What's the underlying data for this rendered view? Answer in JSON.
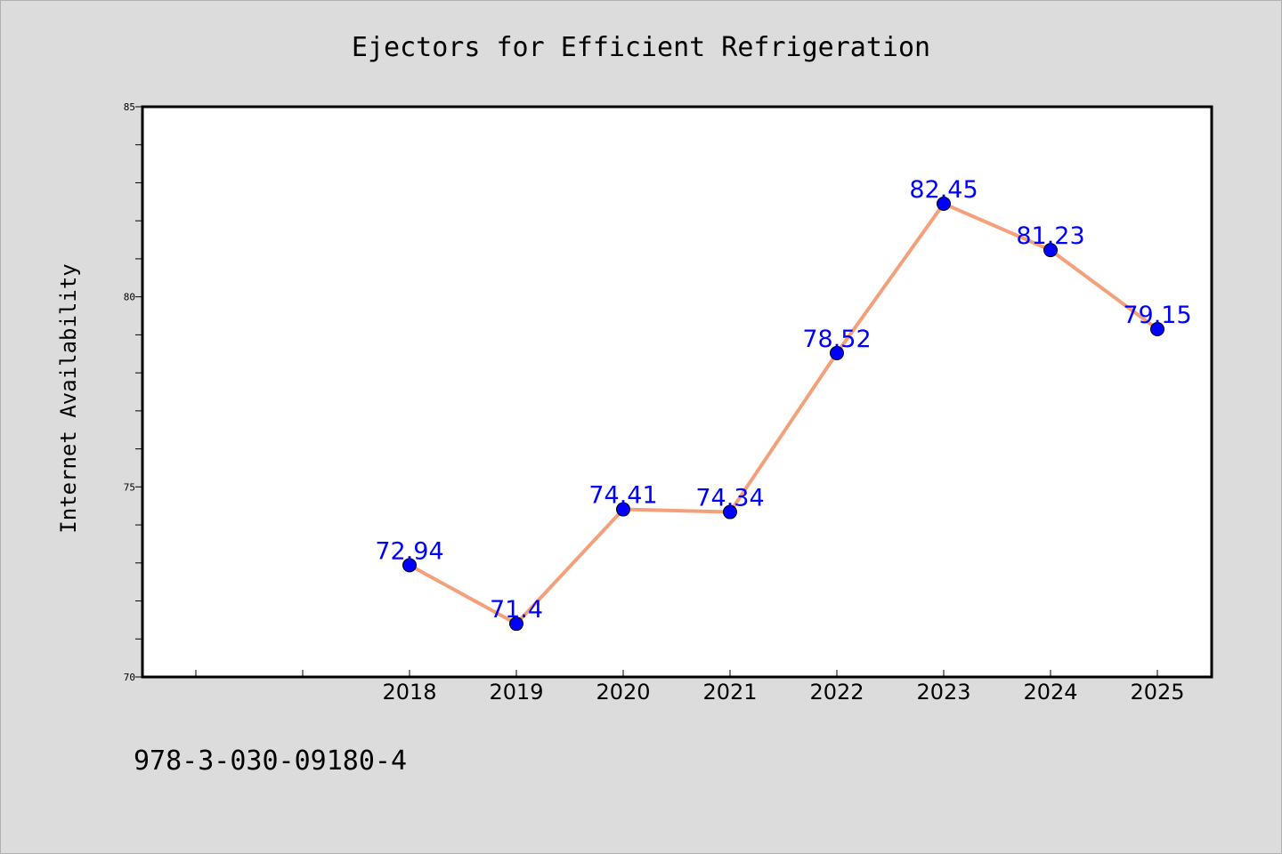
{
  "colors": {
    "background": "#dcdcdc",
    "plot_background": "#ffffff",
    "line": "#f4a07a",
    "marker": "#0000ff",
    "data_label": "#0000ff",
    "text": "#000000"
  },
  "footer_text": "978-3-030-09180-4",
  "chart_data": {
    "type": "line",
    "title": "Ejectors for Efficient Refrigeration",
    "xlabel": "",
    "ylabel": "Internet Availability",
    "x": [
      "2018",
      "2019",
      "2020",
      "2021",
      "2022",
      "2023",
      "2024",
      "2025"
    ],
    "y": [
      72.94,
      71.4,
      74.41,
      74.34,
      78.52,
      82.45,
      81.23,
      79.15
    ],
    "data_labels": [
      "72.94",
      "71.4",
      "74.41",
      "74.34",
      "78.52",
      "82.45",
      "81.23",
      "79.15"
    ],
    "ylim": [
      70,
      85
    ],
    "yticks": [
      "70",
      "75",
      "80",
      "85"
    ],
    "grid": false,
    "legend": "none"
  }
}
